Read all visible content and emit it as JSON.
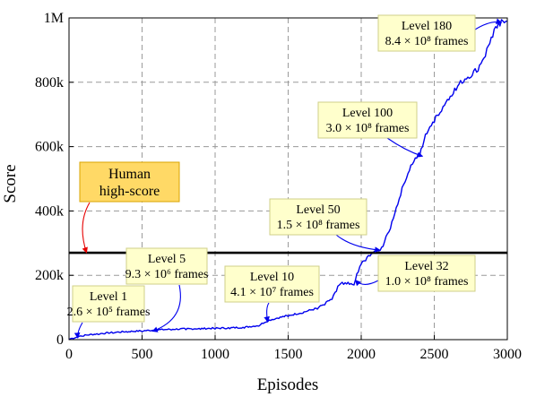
{
  "chart_data": {
    "type": "line",
    "xlabel": "Episodes",
    "ylabel": "Score",
    "xlim": [
      0,
      3000
    ],
    "ylim": [
      0,
      1000000
    ],
    "grid": true,
    "x_ticks": [
      0,
      500,
      1000,
      1500,
      2000,
      2500,
      3000
    ],
    "x_tick_labels": [
      "0",
      "500",
      "1000",
      "1500",
      "2000",
      "2500",
      "3000"
    ],
    "y_ticks": [
      0,
      200000,
      400000,
      600000,
      800000,
      1000000
    ],
    "y_tick_labels": [
      "0",
      "200k",
      "400k",
      "600k",
      "800k",
      "1M"
    ],
    "series": [
      {
        "color": "#0000ee",
        "x": [
          0,
          30,
          60,
          100,
          200,
          300,
          400,
          500,
          600,
          700,
          800,
          900,
          1000,
          1100,
          1200,
          1300,
          1350,
          1400,
          1500,
          1600,
          1700,
          1750,
          1800,
          1830,
          1850,
          1880,
          1900,
          1920,
          1950,
          1960,
          1980,
          2000,
          2030,
          2060,
          2100,
          2130,
          2150,
          2200,
          2250,
          2300,
          2350,
          2400,
          2420,
          2450,
          2480,
          2500,
          2550,
          2600,
          2650,
          2700,
          2750,
          2800,
          2850,
          2900,
          2950,
          2980,
          3000
        ],
        "y": [
          0,
          3000,
          8000,
          11000,
          16000,
          20000,
          23000,
          25000,
          28000,
          30000,
          31000,
          32000,
          33000,
          34000,
          36000,
          42000,
          55000,
          62000,
          72000,
          82000,
          95000,
          108000,
          125000,
          150000,
          170000,
          172000,
          173000,
          172000,
          170000,
          185000,
          210000,
          235000,
          245000,
          260000,
          270000,
          278000,
          290000,
          345000,
          420000,
          490000,
          545000,
          570000,
          600000,
          640000,
          665000,
          675000,
          710000,
          745000,
          775000,
          800000,
          815000,
          835000,
          880000,
          940000,
          975000,
          985000,
          990000
        ]
      }
    ],
    "reference_line": {
      "y": 270000,
      "color": "#000000"
    },
    "annotations": [
      {
        "id": "human",
        "lines": [
          "Human",
          "high-score"
        ],
        "style": "orange",
        "target": [
          120,
          270000
        ]
      },
      {
        "id": "level1",
        "lines": [
          "Level 1",
          "2.6 × 10⁵ frames"
        ],
        "style": "yellow",
        "target": [
          60,
          5000
        ]
      },
      {
        "id": "level5",
        "lines": [
          "Level 5",
          "9.3 × 10⁶ frames"
        ],
        "style": "yellow",
        "target": [
          570,
          26000
        ]
      },
      {
        "id": "level10",
        "lines": [
          "Level 10",
          "4.1 × 10⁷ frames"
        ],
        "style": "yellow",
        "target": [
          1360,
          55000
        ]
      },
      {
        "id": "level32",
        "lines": [
          "Level 32",
          "1.0 × 10⁸ frames"
        ],
        "style": "yellow",
        "target": [
          1960,
          185000
        ]
      },
      {
        "id": "level50",
        "lines": [
          "Level 50",
          "1.5 × 10⁸ frames"
        ],
        "style": "yellow",
        "target": [
          2130,
          278000
        ]
      },
      {
        "id": "level100",
        "lines": [
          "Level 100",
          "3.0 × 10⁸ frames"
        ],
        "style": "yellow",
        "target": [
          2420,
          570000
        ]
      },
      {
        "id": "level180",
        "lines": [
          "Level 180",
          "8.4 × 10⁸ frames"
        ],
        "style": "yellow",
        "target": [
          2960,
          985000
        ]
      }
    ],
    "colors": {
      "annotation_fill": "#ffffcc",
      "human_fill": "#ffd966",
      "human_arrow": "#e60000",
      "line": "#0000ee"
    }
  }
}
